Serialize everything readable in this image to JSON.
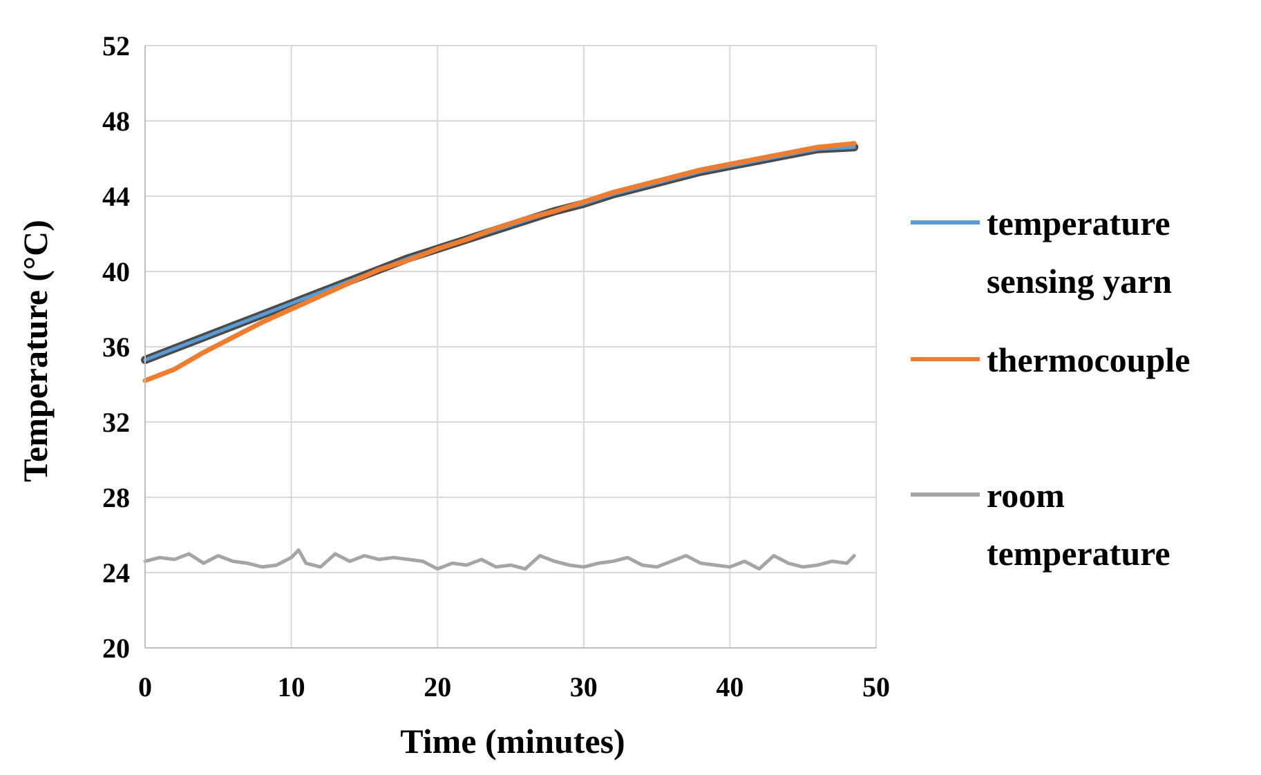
{
  "chart_data": {
    "type": "line",
    "title": "",
    "xlabel": "Time (minutes)",
    "ylabel": "Temperature (°C)",
    "xlim": [
      0,
      50
    ],
    "ylim": [
      20,
      52
    ],
    "x_ticks": [
      "0",
      "10",
      "20",
      "30",
      "40",
      "50"
    ],
    "y_ticks": [
      "20",
      "24",
      "28",
      "32",
      "36",
      "40",
      "44",
      "48",
      "52"
    ],
    "grid": true,
    "legend_position": "right",
    "series": [
      {
        "name": "temperature sensing yarn",
        "color": "#5b9bd5",
        "x": [
          0,
          2,
          4,
          6,
          8,
          10,
          12,
          14,
          16,
          18,
          20,
          22,
          24,
          26,
          28,
          30,
          32,
          34,
          36,
          38,
          40,
          42,
          44,
          46,
          48.5
        ],
        "y": [
          35.3,
          35.9,
          36.5,
          37.1,
          37.7,
          38.3,
          38.9,
          39.5,
          40.1,
          40.7,
          41.2,
          41.7,
          42.2,
          42.7,
          43.2,
          43.6,
          44.1,
          44.5,
          44.9,
          45.3,
          45.6,
          45.9,
          46.2,
          46.5,
          46.6
        ]
      },
      {
        "name": "thermocouple",
        "color": "#ed7d31",
        "x": [
          0,
          2,
          4,
          6,
          8,
          10,
          12,
          14,
          16,
          18,
          20,
          22,
          24,
          26,
          28,
          30,
          32,
          34,
          36,
          38,
          40,
          42,
          44,
          46,
          48.5
        ],
        "y": [
          34.2,
          34.8,
          35.7,
          36.5,
          37.3,
          38.0,
          38.7,
          39.4,
          40.1,
          40.6,
          41.2,
          41.7,
          42.3,
          42.8,
          43.2,
          43.7,
          44.2,
          44.6,
          45.0,
          45.4,
          45.7,
          46.0,
          46.3,
          46.6,
          46.8
        ]
      },
      {
        "name": "room temperature",
        "color": "#a5a5a5",
        "x": [
          0,
          1,
          2,
          3,
          4,
          5,
          6,
          7,
          8,
          9,
          10,
          10.5,
          11,
          12,
          13,
          14,
          15,
          16,
          17,
          18,
          19,
          20,
          21,
          22,
          23,
          24,
          25,
          26,
          27,
          28,
          29,
          30,
          31,
          32,
          33,
          34,
          35,
          36,
          37,
          38,
          39,
          40,
          41,
          42,
          43,
          44,
          45,
          46,
          47,
          48,
          48.5
        ],
        "y": [
          24.6,
          24.8,
          24.7,
          25.0,
          24.5,
          24.9,
          24.6,
          24.5,
          24.3,
          24.4,
          24.8,
          25.2,
          24.5,
          24.3,
          25.0,
          24.6,
          24.9,
          24.7,
          24.8,
          24.7,
          24.6,
          24.2,
          24.5,
          24.4,
          24.7,
          24.3,
          24.4,
          24.2,
          24.9,
          24.6,
          24.4,
          24.3,
          24.5,
          24.6,
          24.8,
          24.4,
          24.3,
          24.6,
          24.9,
          24.5,
          24.4,
          24.3,
          24.6,
          24.2,
          24.9,
          24.5,
          24.3,
          24.4,
          24.6,
          24.5,
          24.9
        ]
      }
    ]
  }
}
